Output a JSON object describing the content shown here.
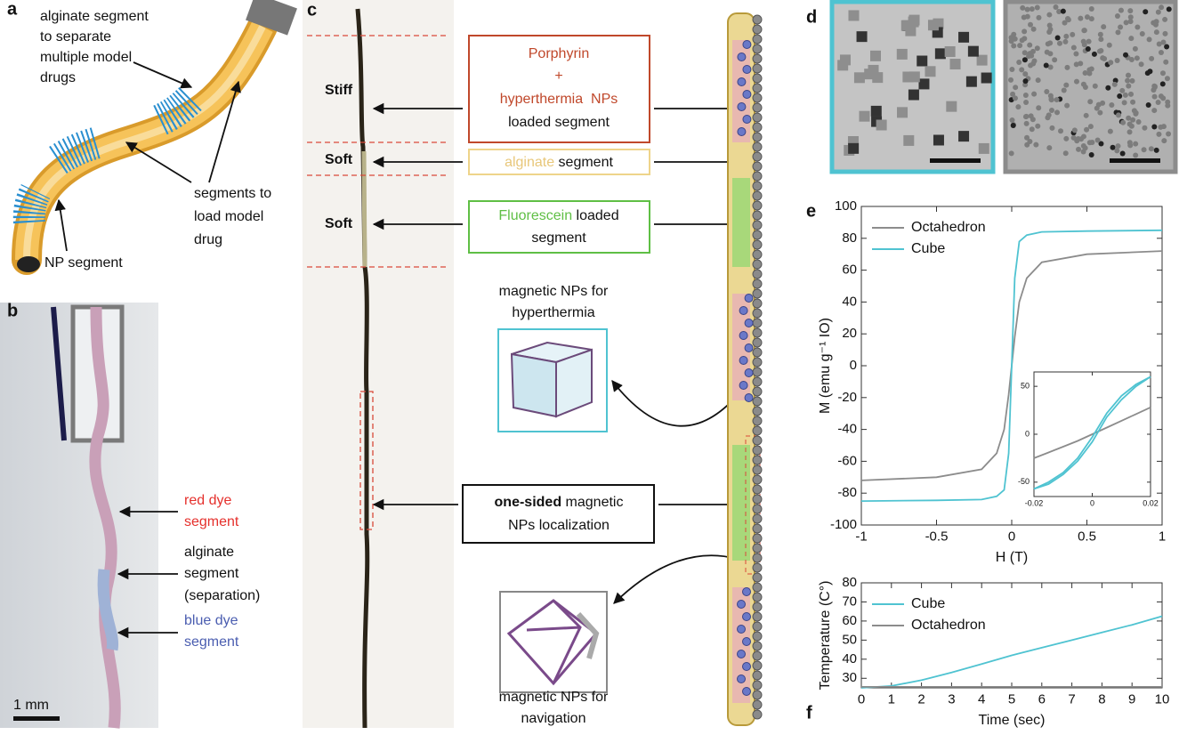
{
  "panels": {
    "a": {
      "label": "a",
      "alginate_note": [
        "alginate segment",
        "to separate",
        "multiple model",
        "drugs"
      ],
      "segments_note": [
        "segments to",
        "load model",
        "drug"
      ],
      "np_note": "NP segment"
    },
    "b": {
      "label": "b",
      "red_note": [
        "red dye",
        "segment"
      ],
      "alginate_note": [
        "alginate",
        "segment",
        "(separation)"
      ],
      "blue_note": [
        "blue dye",
        "segment"
      ],
      "scale": "1 mm"
    },
    "c": {
      "label": "c",
      "stiffness": [
        "Stiff",
        "Soft",
        "Soft"
      ],
      "porphyrin_box": [
        "Porphyrin",
        "+",
        "hyperthermia  NPs",
        "loaded segment"
      ],
      "alginate_box": [
        "alginate",
        " segment"
      ],
      "fluorescein_box": [
        "Fluorescein",
        " loaded",
        "segment"
      ],
      "hyperthermia_caption": [
        "magnetic NPs for",
        "hyperthermia"
      ],
      "localization_box": [
        "one-sided",
        " magnetic",
        "NPs localization"
      ],
      "navigation_caption": [
        "magnetic NPs for",
        "navigation"
      ]
    },
    "d": {
      "label": "d"
    },
    "e": {
      "label": "e"
    },
    "f": {
      "label": "f"
    }
  },
  "chart_data": [
    {
      "type": "line",
      "xlabel": "H (T)",
      "ylabel": "M (emu g⁻¹ IO)",
      "x": [
        -1,
        -0.5,
        -0.2,
        -0.1,
        -0.05,
        -0.02,
        0,
        0.02,
        0.05,
        0.1,
        0.2,
        0.5,
        1
      ],
      "series": [
        {
          "name": "Octahedron",
          "color": "#8c8c8c",
          "values": [
            -72,
            -70,
            -65,
            -55,
            -40,
            -18,
            0,
            18,
            40,
            55,
            65,
            70,
            72
          ]
        },
        {
          "name": "Cube",
          "color": "#4fc3d1",
          "values": [
            -85,
            -84.5,
            -84,
            -82,
            -78,
            -55,
            0,
            55,
            78,
            82,
            84,
            84.5,
            85
          ]
        }
      ],
      "xlim": [
        -1,
        1
      ],
      "xticks": [
        -1,
        -0.5,
        0,
        0.5,
        1
      ],
      "ylim": [
        -100,
        100
      ],
      "yticks": [
        -100,
        -80,
        -60,
        -40,
        -20,
        0,
        20,
        40,
        60,
        80,
        100
      ],
      "legend": "upper left"
    },
    {
      "type": "line",
      "x": [
        -0.02,
        -0.015,
        -0.01,
        -0.005,
        0,
        0.005,
        0.01,
        0.015,
        0.02
      ],
      "series": [
        {
          "color": "#8c8c8c",
          "values": [
            -25,
            -19,
            -13,
            -7,
            0,
            7,
            14,
            21,
            28
          ]
        },
        {
          "color": "#4fc3d1",
          "values": [
            -57,
            -50,
            -40,
            -25,
            -3,
            22,
            40,
            52,
            60
          ]
        },
        {
          "color": "#4fc3d1",
          "values": [
            -57,
            -52,
            -42,
            -28,
            -8,
            18,
            36,
            50,
            60
          ]
        }
      ],
      "xlim": [
        -0.02,
        0.02
      ],
      "xticks": [
        -0.02,
        0,
        0.02
      ],
      "ylim": [
        -65,
        65
      ],
      "yticks": [
        -50,
        0,
        50
      ]
    },
    {
      "type": "line",
      "xlabel": "Time (sec)",
      "ylabel": "Temperature (C°)",
      "x": [
        0,
        1,
        2,
        3,
        4,
        5,
        6,
        7,
        8,
        9,
        10
      ],
      "series": [
        {
          "name": "Cube",
          "color": "#4fc3d1",
          "values": [
            25,
            26,
            29,
            33,
            37.5,
            42,
            46,
            50,
            54,
            58,
            62.5
          ]
        },
        {
          "name": "Octahedron",
          "color": "#8c8c8c",
          "values": [
            25.5,
            25.5,
            25.5,
            25.5,
            25.5,
            25.5,
            25.5,
            25.5,
            25.5,
            25.5,
            25.5
          ]
        }
      ],
      "xlim": [
        0,
        10
      ],
      "xticks": [
        0,
        1,
        2,
        3,
        4,
        5,
        6,
        7,
        8,
        9,
        10
      ],
      "ylim": [
        25,
        80
      ],
      "yticks": [
        30,
        40,
        50,
        60,
        70,
        80
      ],
      "legend": "upper left"
    }
  ]
}
